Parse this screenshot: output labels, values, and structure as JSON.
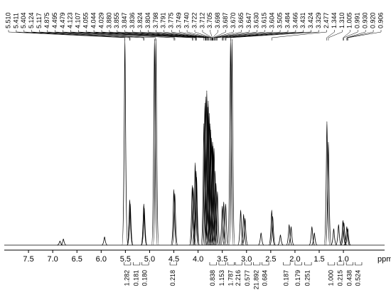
{
  "chart_data": {
    "type": "nmr-spectrum",
    "x_label": "ppm",
    "xlim": [
      8.0,
      0.15
    ],
    "xticks": [
      7.5,
      {
        "value": 7,
        "label": "7.0"
      },
      6.5,
      {
        "value": 6,
        "label": "6.0"
      },
      5.5,
      {
        "value": 5,
        "label": "5.0"
      },
      4.5,
      {
        "value": 4,
        "label": "4.0"
      },
      3.5,
      {
        "value": 3,
        "label": "3.0"
      },
      2.5,
      {
        "value": 2,
        "label": "2.0"
      },
      1.5,
      {
        "value": 1,
        "label": "1.0"
      }
    ],
    "ylim": [
      0,
      100
    ],
    "color": "#000000",
    "x": [
      6.85,
      6.78,
      5.93,
      5.51,
      5.41,
      5.4,
      5.12,
      5.11,
      4.9,
      4.87,
      4.5,
      4.48,
      4.12,
      4.1,
      4.06,
      4.04,
      4.03,
      3.88,
      3.86,
      3.84,
      3.82,
      3.8,
      3.79,
      3.77,
      3.75,
      3.74,
      3.72,
      3.7,
      3.69,
      3.67,
      3.65,
      3.63,
      3.6,
      3.5,
      3.47,
      3.43,
      3.33,
      3.3,
      3.12,
      3.06,
      3.03,
      2.7,
      2.48,
      2.46,
      2.3,
      2.12,
      2.08,
      1.65,
      1.6,
      1.34,
      1.31,
      1.2,
      1.1,
      1.01,
      0.99,
      0.93,
      0.91
    ],
    "values": [
      2,
      3,
      4,
      100,
      22,
      20,
      20,
      18,
      100,
      100,
      27,
      25,
      29,
      28,
      40,
      36,
      33,
      59,
      69,
      72,
      75,
      67,
      70,
      64,
      59,
      56,
      52,
      50,
      48,
      47,
      36,
      30,
      26,
      19,
      21,
      20,
      100,
      100,
      17,
      15,
      13,
      6,
      17,
      14,
      5,
      10,
      9,
      9,
      6,
      60,
      50,
      8,
      10,
      12,
      11,
      9,
      8
    ],
    "peak_labels": {
      "values": [
        5.51,
        5.411,
        5.404,
        5.124,
        5.117,
        4.875,
        4.495,
        4.479,
        4.123,
        4.107,
        4.055,
        4.044,
        4.029,
        3.88,
        3.855,
        3.847,
        3.836,
        3.824,
        3.804,
        3.798,
        3.791,
        3.775,
        3.749,
        3.74,
        3.722,
        3.712,
        3.705,
        3.698,
        3.687,
        3.67,
        3.665,
        3.647,
        3.63,
        3.615,
        3.604,
        3.505,
        3.484,
        3.466,
        3.431,
        3.424,
        3.329,
        2.477,
        1.344,
        1.31,
        1.005,
        0.991,
        0.93,
        0.92,
        0.906
      ],
      "value_labels": [
        "5.510",
        "5.411",
        "5.404",
        "5.124",
        "5.117",
        "4.875",
        "4.495",
        "4.479",
        "4.123",
        "4.107",
        "4.055",
        "4.044",
        "4.029",
        "3.880",
        "3.855",
        "3.847",
        "3.836",
        "3.824",
        "3.804",
        "3.798",
        "3.791",
        "3.775",
        "3.749",
        "3.740",
        "3.722",
        "3.712",
        "3.705",
        "3.698",
        "3.687",
        "3.670",
        "3.665",
        "3.647",
        "3.630",
        "3.615",
        "3.604",
        "3.505",
        "3.484",
        "3.466",
        "3.431",
        "3.424",
        "3.329",
        "2.477",
        "1.344",
        "1.310",
        "1.005",
        "0.991",
        "0.930",
        "0.920",
        "0.906"
      ]
    },
    "integrals": {
      "ranges": [
        [
          5.53,
          5.39
        ],
        [
          5.34,
          5.2
        ],
        [
          5.16,
          5.02
        ],
        [
          4.58,
          4.44
        ],
        [
          3.76,
          3.62
        ],
        [
          3.57,
          3.43
        ],
        [
          3.39,
          3.25
        ],
        [
          3.23,
          3.09
        ],
        [
          3.04,
          2.9
        ],
        [
          2.86,
          2.72
        ],
        [
          2.68,
          2.54
        ],
        [
          2.24,
          2.1
        ],
        [
          2.0,
          1.86
        ],
        [
          1.8,
          1.66
        ],
        [
          1.32,
          1.18
        ],
        [
          1.13,
          0.99
        ],
        [
          0.94,
          0.8
        ],
        [
          0.76,
          0.62
        ]
      ],
      "values": [
        1.282,
        0.181,
        0.18,
        0.218,
        0.838,
        1.153,
        1.787,
        2.216,
        0.577,
        21.892,
        0.684,
        0.187,
        0.179,
        0.251,
        1.0,
        0.215,
        0.438,
        0.524
      ],
      "value_labels": [
        "1.282",
        "0.181",
        "0.180",
        "0.218",
        "0.838",
        "1.153",
        "1.787",
        "2.216",
        "0.577",
        "21.892",
        "0.684",
        "0.187",
        "0.179",
        "0.251",
        "1.000",
        "0.215",
        "0.438",
        "0.524"
      ]
    }
  }
}
